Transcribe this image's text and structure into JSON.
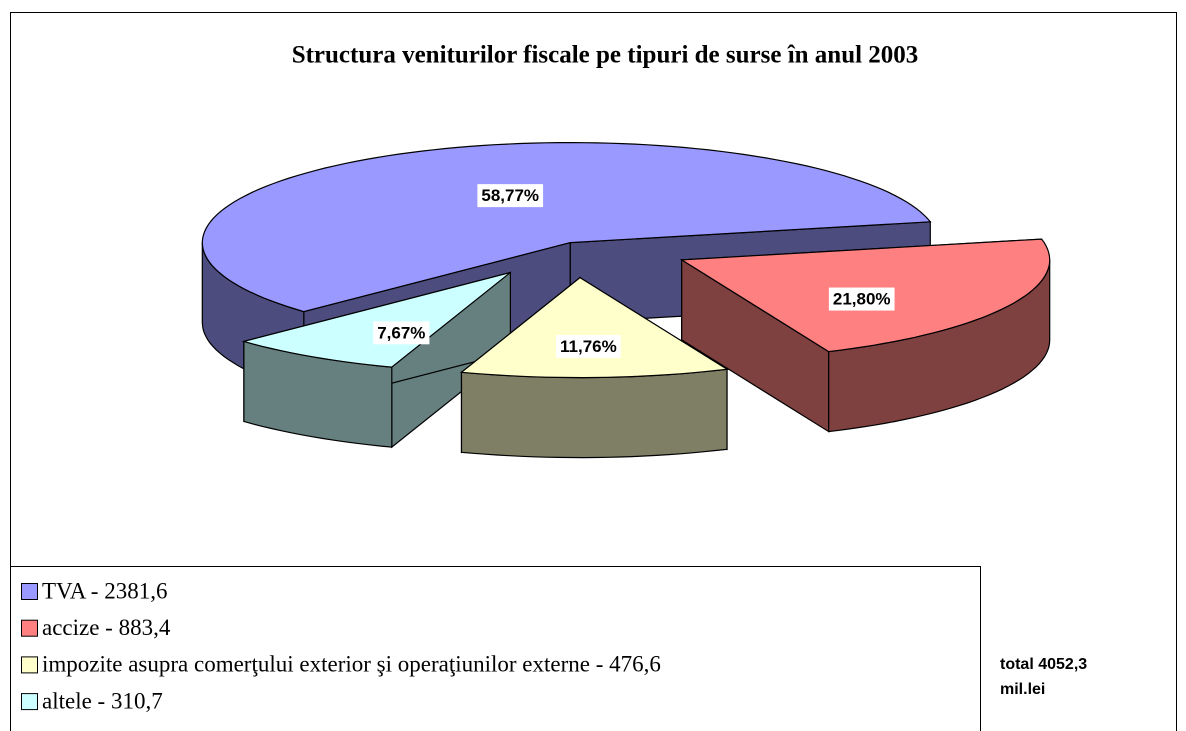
{
  "chart_data": {
    "type": "pie",
    "title": "Structura veniturilor fiscale pe tipuri de surse în anul 2003",
    "categories": [
      "TVA  -  2381,6",
      "accize  - 883,4",
      "impozite asupra comerţului exterior şi operaţiunilor externe  -  476,6",
      "altele  - 310,7"
    ],
    "values": [
      58.77,
      21.8,
      11.76,
      7.67
    ],
    "value_labels": [
      "58,77%",
      "21,80%",
      "11,76%",
      "7,67%"
    ],
    "colors": [
      "#9999ff",
      "#ff8080",
      "#ffffcc",
      "#ccffff"
    ],
    "annotation": [
      "total 4052,3",
      "mil.lei"
    ]
  }
}
